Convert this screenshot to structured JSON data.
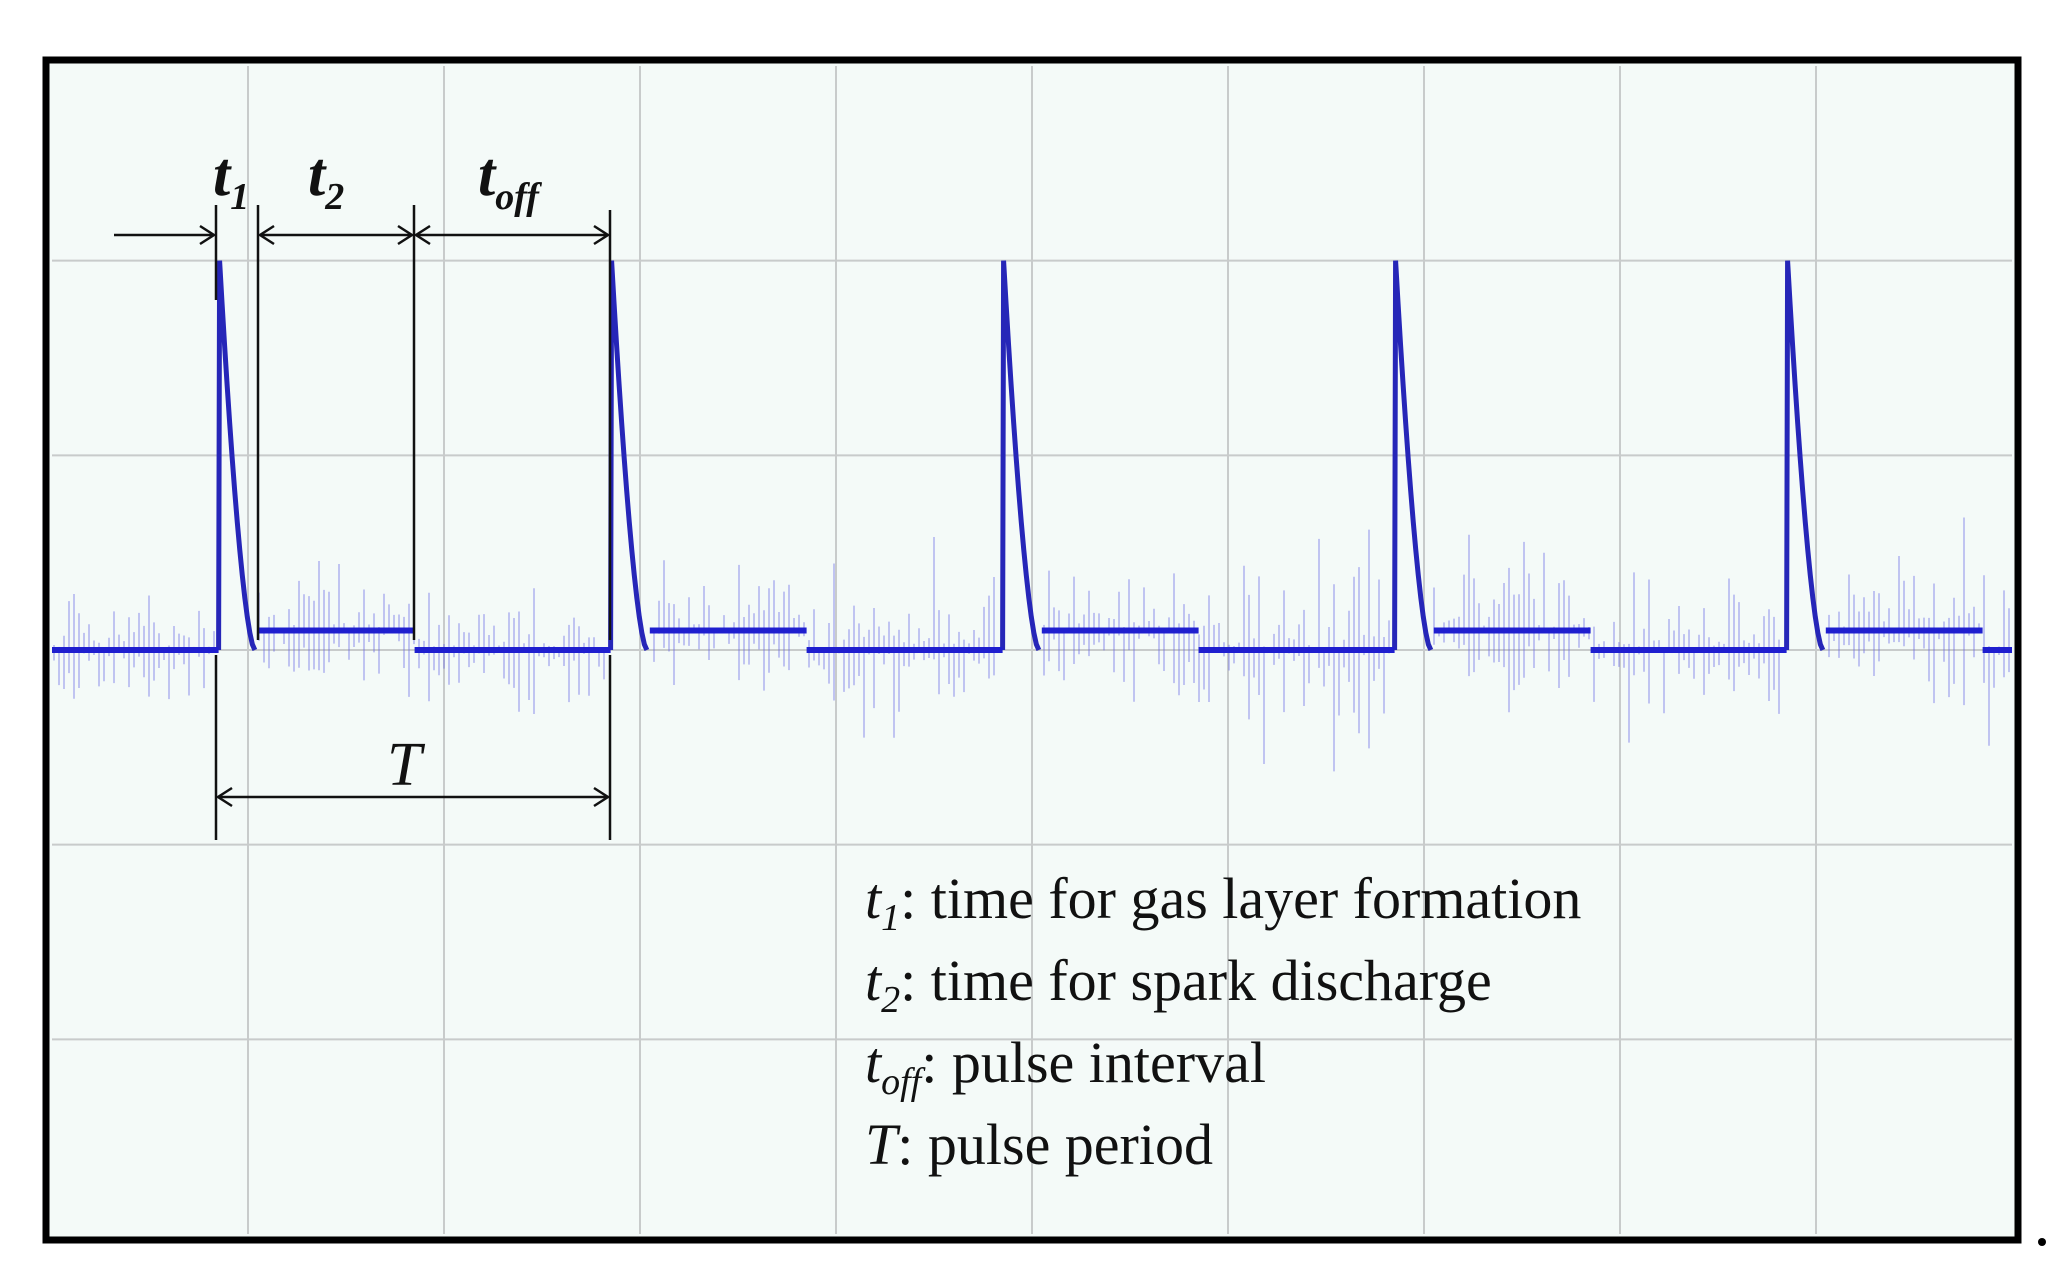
{
  "chart_data": {
    "type": "line",
    "title": "",
    "xlabel": "",
    "ylabel": "",
    "grid": true,
    "grid_divisions": {
      "x": 10,
      "y": 6
    },
    "x_range_div": [
      0,
      10
    ],
    "y_range_div": [
      0,
      6
    ],
    "baseline_div": 3.0,
    "pulses": [
      {
        "start_div": 0.85,
        "peak_div": 5.0,
        "t1_end_div": 1.05,
        "t2_end_div": 1.85
      },
      {
        "start_div": 2.85,
        "peak_div": 5.0,
        "t1_end_div": 3.05,
        "t2_end_div": 3.85
      },
      {
        "start_div": 4.85,
        "peak_div": 5.0,
        "t1_end_div": 5.05,
        "t2_end_div": 5.85
      },
      {
        "start_div": 6.85,
        "peak_div": 5.0,
        "t1_end_div": 7.05,
        "t2_end_div": 7.85
      },
      {
        "start_div": 8.85,
        "peak_div": 5.0,
        "t1_end_div": 9.05,
        "t2_end_div": 9.85
      }
    ],
    "discharge_level_div": 3.1,
    "annotations": {
      "t1": {
        "symbol": "t",
        "sub": "1"
      },
      "t2": {
        "symbol": "t",
        "sub": "2"
      },
      "toff": {
        "symbol": "t",
        "sub": "off"
      },
      "T": {
        "symbol": "T"
      }
    },
    "legend": [
      {
        "symbol": "t",
        "sub": "1",
        "text": ": time for gas layer formation"
      },
      {
        "symbol": "t",
        "sub": "2",
        "text": ": time for spark discharge"
      },
      {
        "symbol": "t",
        "sub": "off",
        "text": ": pulse interval"
      },
      {
        "symbol": "T",
        "sub": "",
        "text": ": pulse period"
      }
    ],
    "colors": {
      "trace": "#1f1fcf",
      "noise": "#6e6ee6",
      "grid": "#c8cbcb",
      "background": "#f4faf8"
    }
  }
}
